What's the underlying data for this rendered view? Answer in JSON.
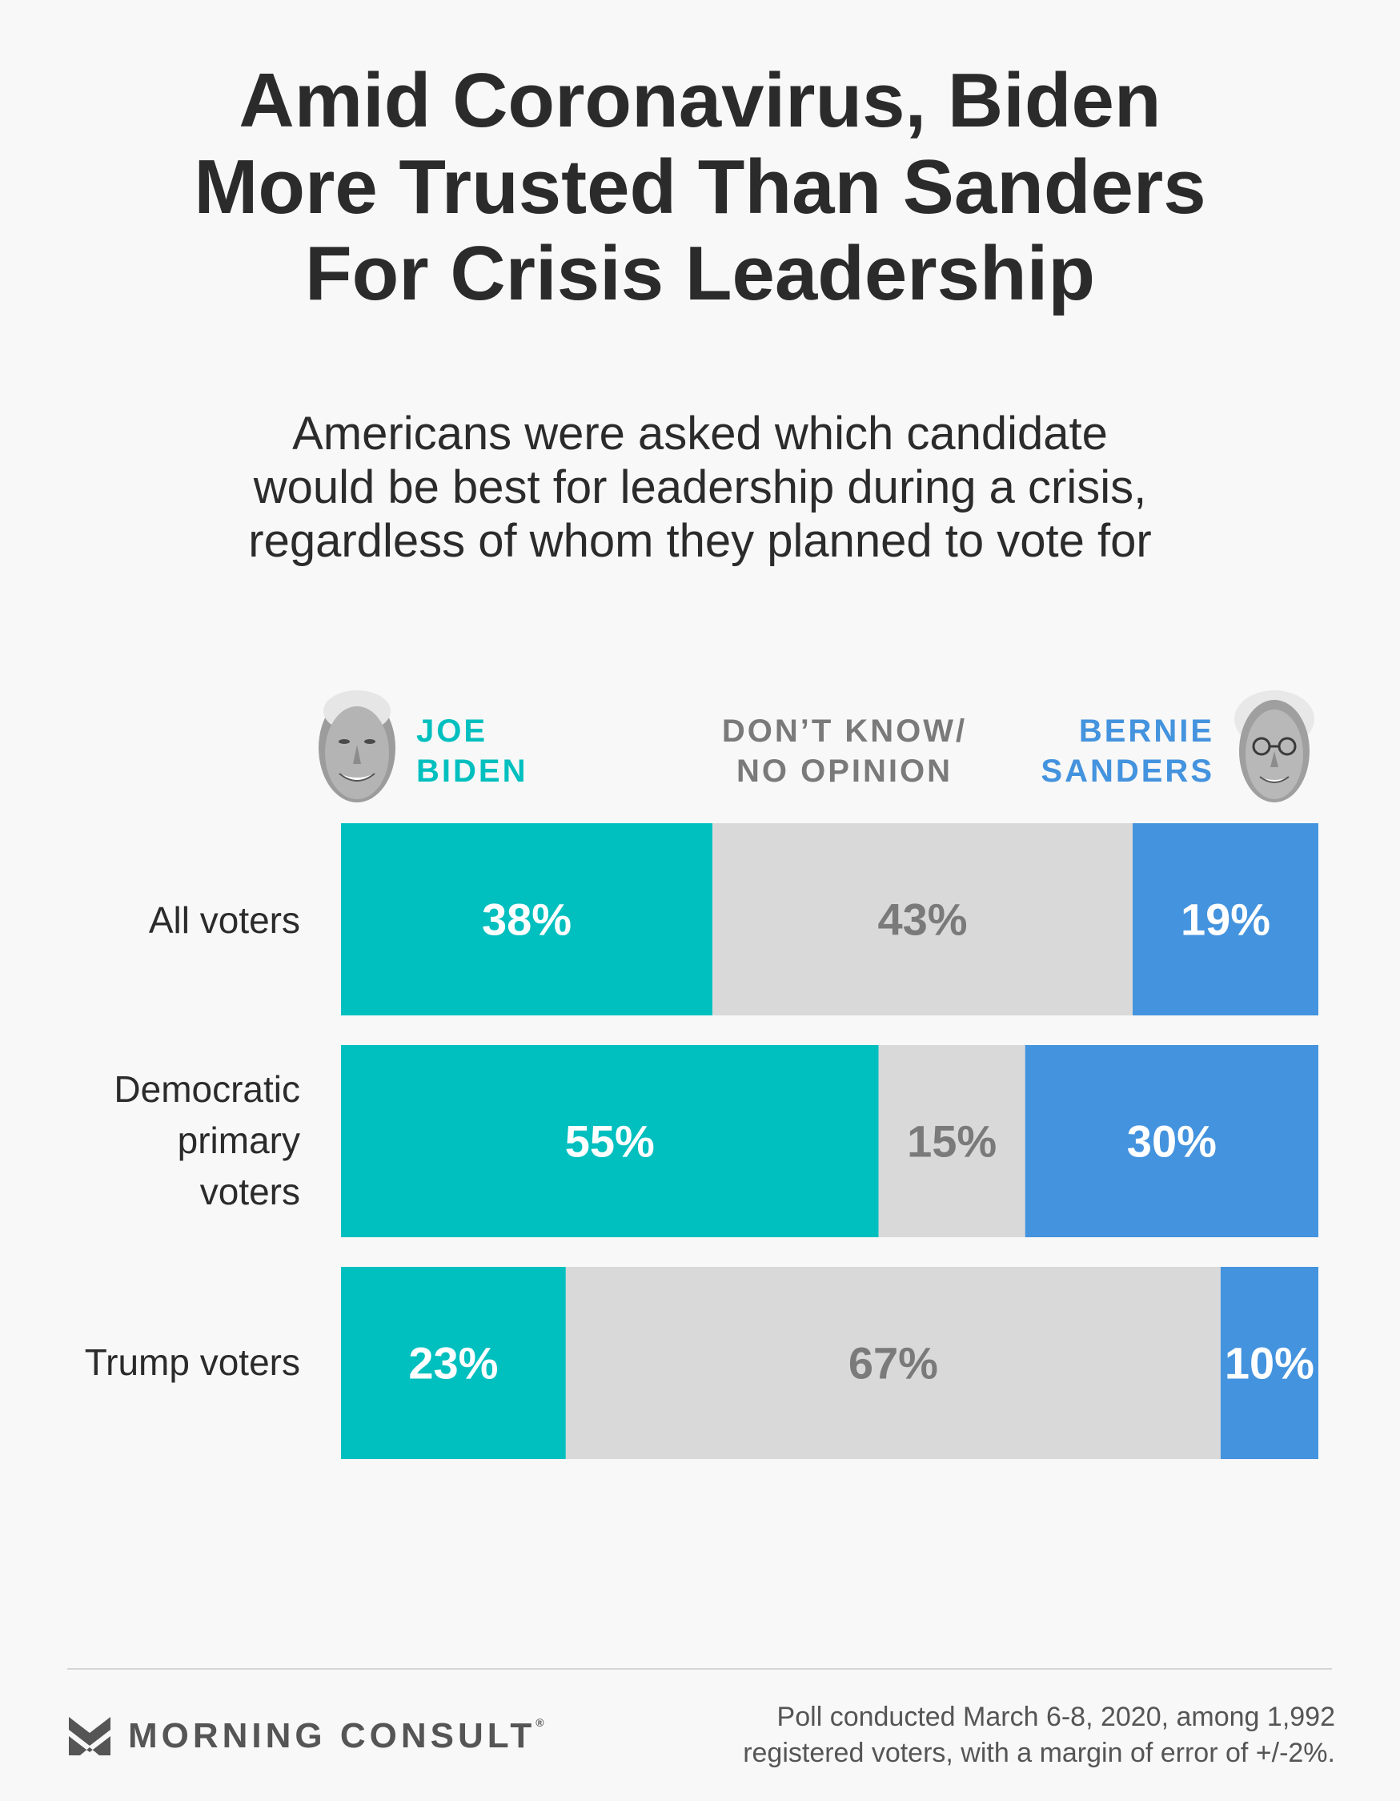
{
  "title_lines": [
    "Amid Coronavirus, Biden",
    "More Trusted Than Sanders",
    "For Crisis Leadership"
  ],
  "subtitle_lines": [
    "Americans were asked which candidate",
    "would be best for leadership during a crisis,",
    "regardless of whom they planned to vote for"
  ],
  "legend": {
    "biden": [
      "JOE",
      "BIDEN"
    ],
    "dont_know": [
      "DON’T KNOW/",
      "NO OPINION"
    ],
    "sanders": [
      "BERNIE",
      "SANDERS"
    ]
  },
  "colors": {
    "biden": "#00bfbf",
    "dont_know": "#d9d9d9",
    "sanders": "#4493de",
    "dont_know_text": "#7a7a7a",
    "sanders_text": "#4493de"
  },
  "icons": {
    "biden": "joe-biden-portrait-icon",
    "sanders": "bernie-sanders-portrait-icon",
    "brand": "morning-consult-logo-icon"
  },
  "chart_data": {
    "type": "bar",
    "orientation": "horizontal",
    "stacked": true,
    "normalized_to": 100,
    "categories": [
      "All voters",
      "Democratic primary voters",
      "Trump voters"
    ],
    "category_label_lines": [
      [
        "All voters"
      ],
      [
        "Democratic",
        "primary",
        "voters"
      ],
      [
        "Trump voters"
      ]
    ],
    "series": [
      {
        "name": "JOE BIDEN",
        "values": [
          38,
          55,
          23
        ],
        "labels": [
          "38%",
          "55%",
          "23%"
        ]
      },
      {
        "name": "DON’T KNOW/ NO OPINION",
        "values": [
          43,
          15,
          67
        ],
        "labels": [
          "43%",
          "15%",
          "67%"
        ]
      },
      {
        "name": "BERNIE SANDERS",
        "values": [
          19,
          30,
          10
        ],
        "labels": [
          "19%",
          "30%",
          "10%"
        ]
      }
    ],
    "xlim": [
      0,
      100
    ],
    "legend_position": "top",
    "grid": false
  },
  "footer": {
    "brand": "MORNING CONSULT",
    "brand_mark": "®",
    "source_lines": [
      "Poll conducted March 6-8, 2020, among 1,992",
      "registered voters, with a margin of error of +/-2%."
    ]
  }
}
